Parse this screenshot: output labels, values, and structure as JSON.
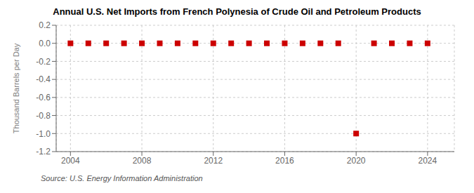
{
  "chart_data": {
    "type": "scatter",
    "title": "Annual U.S. Net Imports from French Polynesia of Crude Oil and Petroleum Products",
    "ylabel": "Thousand Barrels per Day",
    "source": "Source: U.S. Energy Information Administration",
    "x": [
      2004,
      2005,
      2006,
      2007,
      2008,
      2009,
      2010,
      2011,
      2012,
      2013,
      2014,
      2015,
      2016,
      2017,
      2018,
      2019,
      2020,
      2021,
      2022,
      2023,
      2024
    ],
    "values": [
      0,
      0,
      0,
      0,
      0,
      0,
      0,
      0,
      0,
      0,
      0,
      0,
      0,
      0,
      0,
      0,
      -1,
      0,
      0,
      0,
      0
    ],
    "color": "#cc0000",
    "marker": "square",
    "xlim": [
      2003.2,
      2025.5
    ],
    "xticks": [
      2004,
      2008,
      2012,
      2016,
      2020,
      2024
    ],
    "ylim": [
      -1.2,
      0.2
    ],
    "yticks": [
      0.2,
      {
        "value": 0,
        "label": "0.0"
      },
      -0.2,
      -0.4,
      -0.6,
      -0.8,
      {
        "value": -1,
        "label": "-1.0"
      },
      -1.2
    ],
    "grid": true
  }
}
